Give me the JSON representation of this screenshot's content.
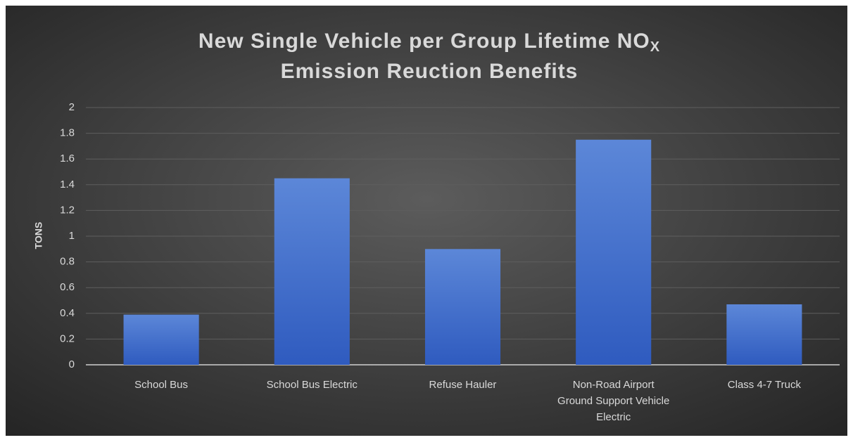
{
  "chart_data": {
    "type": "bar",
    "title": {
      "text": "New Single Vehicle per Group Lifetime NO",
      "subscript": "X",
      "line2": "Emission Reuction Benefits"
    },
    "y_label": "TONS",
    "categories": [
      "School Bus",
      "School Bus Electric",
      "Refuse Hauler",
      "Non-Road Airport Ground Support Vehicle Electric",
      "Class 4-7 Truck"
    ],
    "values": [
      0.39,
      1.45,
      0.9,
      1.75,
      0.47
    ],
    "color": "#4a76d0",
    "ylim": [
      0,
      2
    ],
    "yticks": [
      0,
      0.2,
      0.4,
      0.6,
      0.8,
      1,
      1.2,
      1.4,
      1.6,
      1.8,
      2
    ],
    "grid": true
  }
}
